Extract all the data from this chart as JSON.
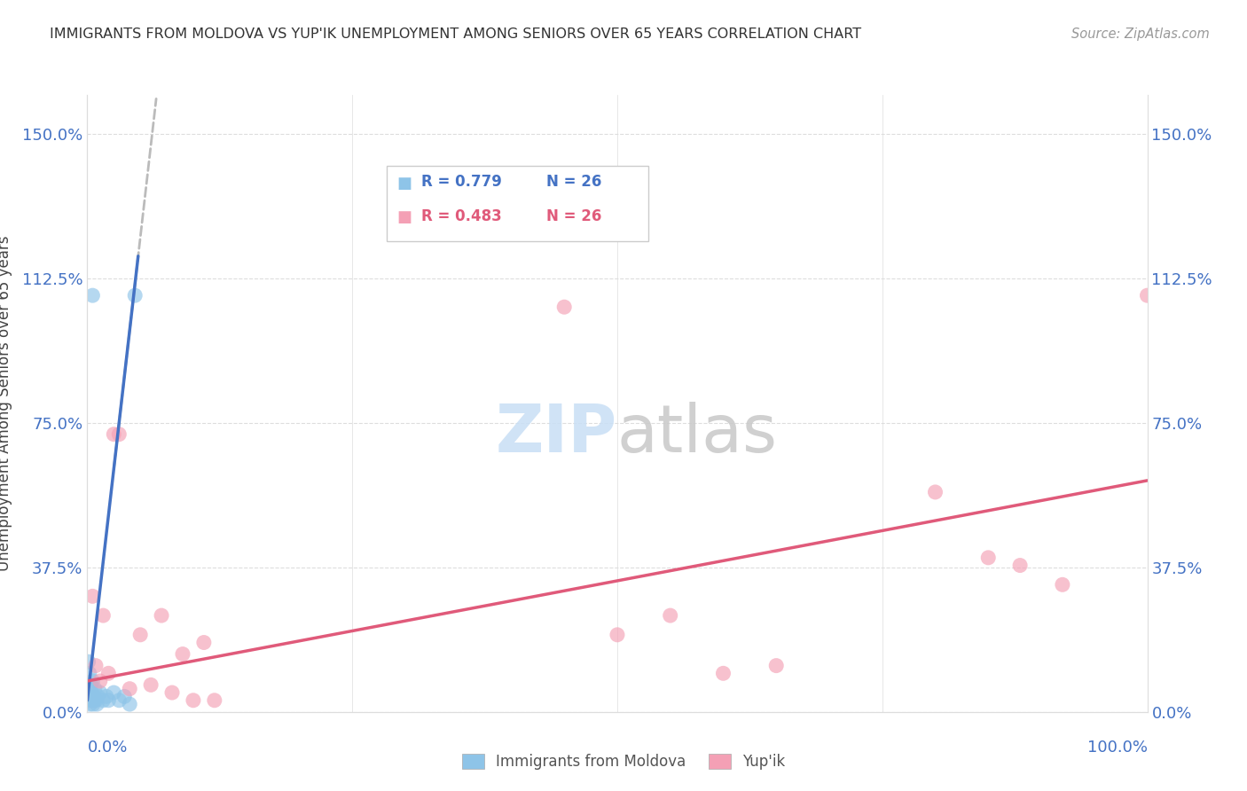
{
  "title": "IMMIGRANTS FROM MOLDOVA VS YUP'IK UNEMPLOYMENT AMONG SENIORS OVER 65 YEARS CORRELATION CHART",
  "source": "Source: ZipAtlas.com",
  "ylabel": "Unemployment Among Seniors over 65 years",
  "ytick_labels": [
    "0.0%",
    "37.5%",
    "75.0%",
    "112.5%",
    "150.0%"
  ],
  "ytick_values": [
    0,
    37.5,
    75.0,
    112.5,
    150.0
  ],
  "xlim": [
    0,
    100
  ],
  "ylim": [
    0,
    160
  ],
  "legend_label_blue": "Immigrants from Moldova",
  "legend_label_pink": "Yup'ik",
  "blue_color": "#8ec4e8",
  "pink_color": "#f4a0b5",
  "blue_line_color": "#4472c4",
  "pink_line_color": "#e05a7a",
  "axis_label_color": "#4472c4",
  "source_color": "#999999",
  "title_color": "#333333",
  "grid_color": "#dddddd",
  "watermark_color": "#ddeeff",
  "blue_dots": [
    [
      0.5,
      108
    ],
    [
      4.5,
      108
    ],
    [
      0.1,
      13
    ],
    [
      0.2,
      10
    ],
    [
      0.3,
      7
    ],
    [
      0.4,
      5
    ],
    [
      0.5,
      8
    ],
    [
      0.6,
      4
    ],
    [
      0.7,
      6
    ],
    [
      0.8,
      3
    ],
    [
      1.0,
      4
    ],
    [
      1.2,
      5
    ],
    [
      1.5,
      3
    ],
    [
      1.8,
      4
    ],
    [
      2.0,
      3
    ],
    [
      2.5,
      5
    ],
    [
      3.0,
      3
    ],
    [
      3.5,
      4
    ],
    [
      4.0,
      2
    ],
    [
      0.15,
      3
    ],
    [
      0.25,
      2
    ],
    [
      0.35,
      4
    ],
    [
      0.45,
      3
    ],
    [
      0.55,
      2
    ],
    [
      0.65,
      3
    ],
    [
      0.9,
      2
    ]
  ],
  "pink_dots": [
    [
      0.5,
      30
    ],
    [
      1.5,
      25
    ],
    [
      2.5,
      72
    ],
    [
      3.0,
      72
    ],
    [
      5.0,
      20
    ],
    [
      7.0,
      25
    ],
    [
      9.0,
      15
    ],
    [
      11.0,
      18
    ],
    [
      0.8,
      12
    ],
    [
      1.2,
      8
    ],
    [
      2.0,
      10
    ],
    [
      4.0,
      6
    ],
    [
      6.0,
      7
    ],
    [
      8.0,
      5
    ],
    [
      10.0,
      3
    ],
    [
      12.0,
      3
    ],
    [
      45.0,
      105
    ],
    [
      50.0,
      20
    ],
    [
      55.0,
      25
    ],
    [
      60.0,
      10
    ],
    [
      65.0,
      12
    ],
    [
      80.0,
      57
    ],
    [
      85.0,
      40
    ],
    [
      88.0,
      38
    ],
    [
      92.0,
      33
    ],
    [
      100.0,
      108
    ]
  ],
  "blue_line": {
    "x0": 0,
    "x1": 4.8,
    "y_intercept": 3,
    "slope": 24.0
  },
  "blue_dash_line": {
    "x0": 2.5,
    "x1": 6.5,
    "y_intercept": 3,
    "slope": 24.0
  },
  "pink_line": {
    "x0": 0,
    "x1": 100,
    "y_intercept": 8,
    "slope": 0.52
  }
}
